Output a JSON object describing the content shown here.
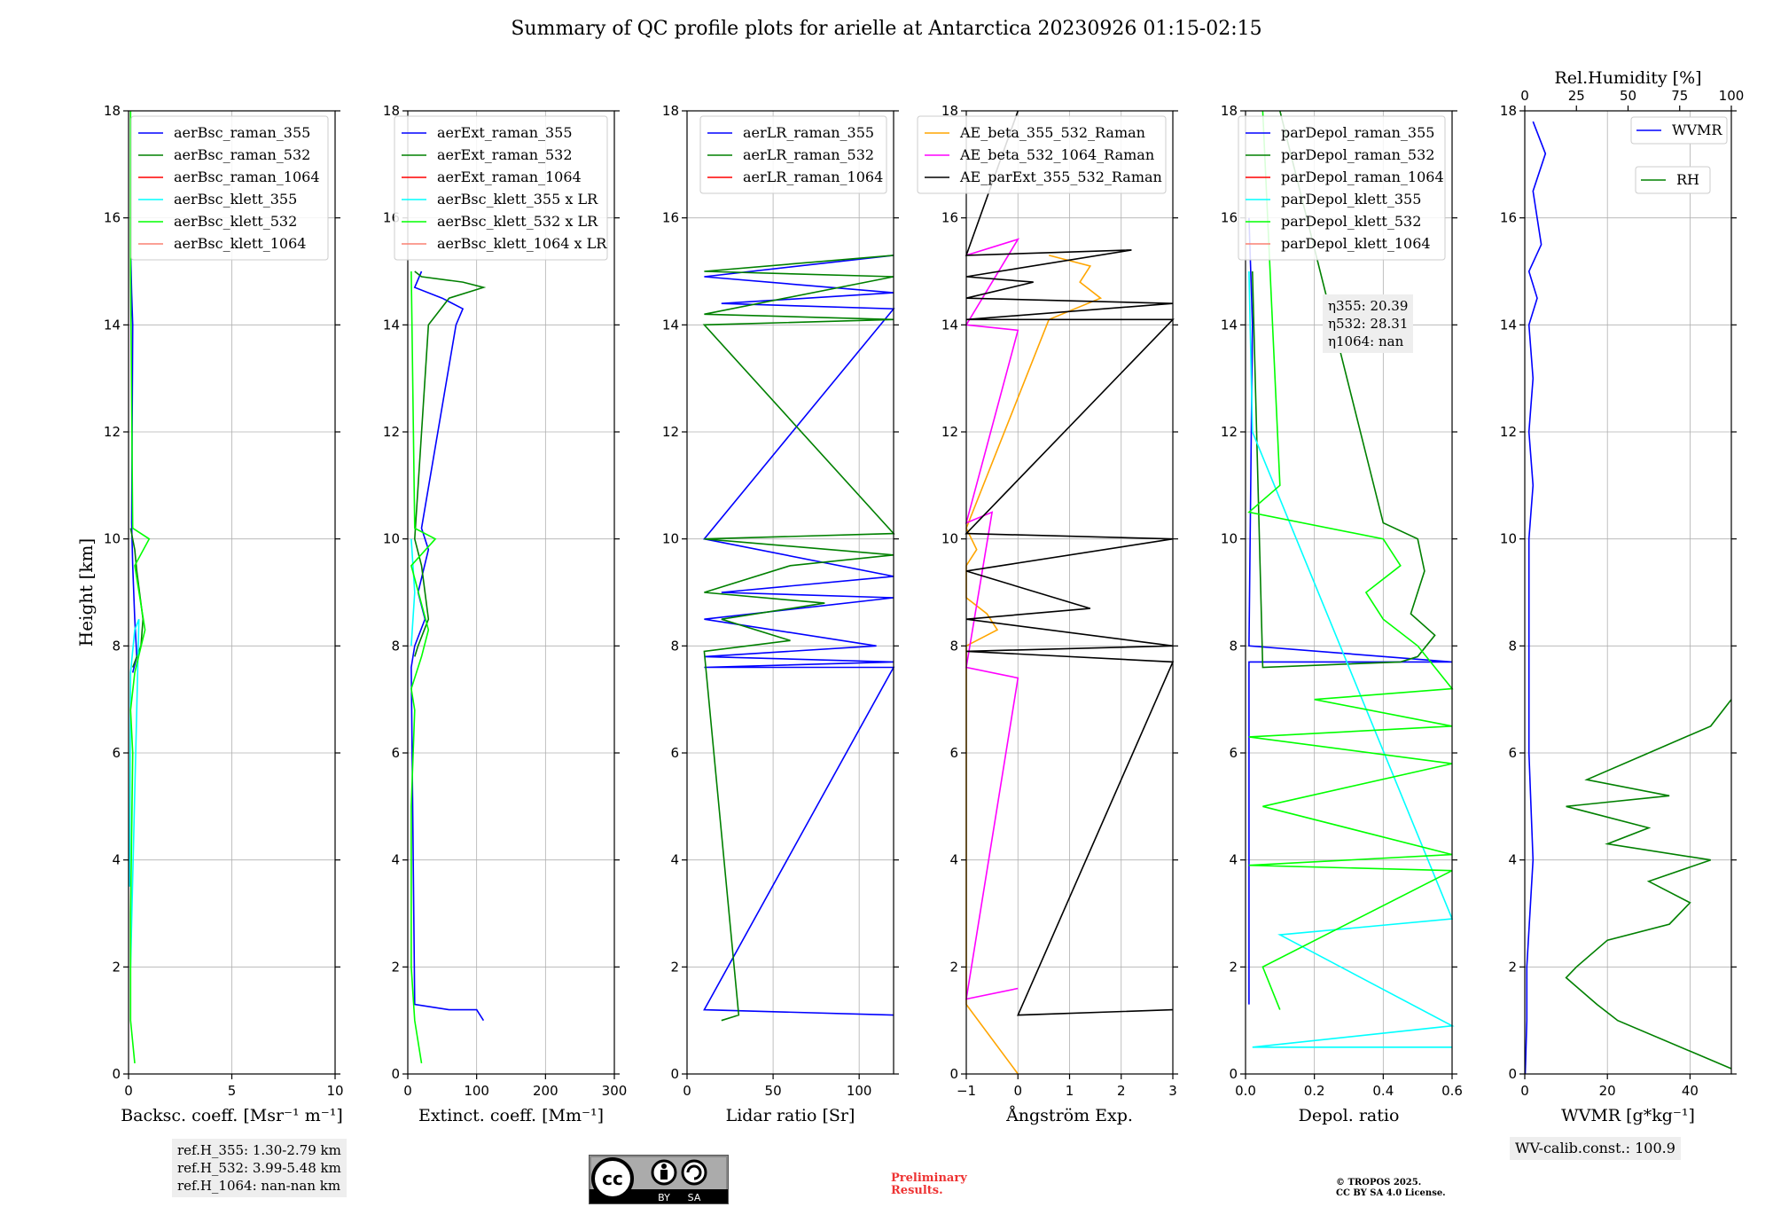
{
  "title": "Summary of QC profile plots for arielle at Antarctica 20230926 01:15-02:15",
  "ylabel": "Height [km]",
  "ref_heights": [
    "ref.H_355: 1.30-2.79 km",
    "ref.H_532: 3.99-5.48 km",
    "ref.H_1064: nan-nan km"
  ],
  "eta_lines": [
    "η355: 20.39",
    "η532: 28.31",
    "η1064: nan"
  ],
  "wv_calib": "WV-calib.const.: 100.9",
  "license_badge": [
    "cc",
    "BY",
    "SA"
  ],
  "preliminary": [
    "Preliminary",
    "Results."
  ],
  "copyright": [
    "© TROPOS 2025.",
    "CC BY SA 4.0 License."
  ],
  "chart_data": [
    {
      "type": "line",
      "panel": "backscatter",
      "xlabel": "Backsc. coeff. [Msr⁻¹ m⁻¹]",
      "xlim": [
        0,
        10
      ],
      "ylim": [
        0,
        18
      ],
      "xticks": [
        0,
        5,
        10
      ],
      "yticks": [
        0,
        2,
        4,
        6,
        8,
        10,
        12,
        14,
        16,
        18
      ],
      "legend_position": "top-right",
      "series": [
        {
          "name": "aerBsc_raman_355",
          "color": "#0000ff",
          "x": [
            0.1,
            0.15,
            0.2,
            0.15,
            0.2,
            0.3,
            0.4,
            0.2
          ],
          "y": [
            15.4,
            14.6,
            14.0,
            10.3,
            9.5,
            8.5,
            7.8,
            7.5
          ]
        },
        {
          "name": "aerBsc_raman_532",
          "color": "#008000",
          "x": [
            0.1,
            0.3,
            0.4,
            0.7,
            0.6,
            0.2
          ],
          "y": [
            10.2,
            9.8,
            9.4,
            8.5,
            8.0,
            7.6
          ]
        },
        {
          "name": "aerBsc_raman_1064",
          "color": "#ff0000",
          "x": [],
          "y": []
        },
        {
          "name": "aerBsc_klett_355",
          "color": "#00ffff",
          "x": [
            0.05,
            0.1,
            0.3,
            0.5,
            0.1
          ],
          "y": [
            3.5,
            7.5,
            8.3,
            8.5,
            2.0
          ]
        },
        {
          "name": "aerBsc_klett_532",
          "color": "#00ff00",
          "x": [
            0.1,
            0.1,
            0.2,
            1.0,
            0.3,
            0.8,
            0.3,
            0.1,
            0.2,
            0.1,
            0.1,
            0.3
          ],
          "y": [
            18,
            15,
            10.2,
            10.0,
            9.5,
            8.3,
            7.5,
            6.8,
            6.0,
            3.0,
            1.0,
            0.2
          ]
        },
        {
          "name": "aerBsc_klett_1064",
          "color": "#fa8072",
          "x": [],
          "y": []
        }
      ]
    },
    {
      "type": "line",
      "panel": "extinction",
      "xlabel": "Extinct. coeff. [Mm⁻¹]",
      "xlim": [
        0,
        300
      ],
      "ylim": [
        0,
        18
      ],
      "xticks": [
        0,
        100,
        200,
        300
      ],
      "legend_position": "top-right",
      "series": [
        {
          "name": "aerExt_raman_355",
          "color": "#0000ff",
          "x": [
            20,
            10,
            50,
            80,
            70,
            20,
            30,
            15,
            25,
            10,
            5,
            10,
            60,
            100,
            110
          ],
          "y": [
            15.0,
            14.7,
            14.5,
            14.3,
            14.0,
            10.2,
            9.8,
            9.0,
            8.5,
            8.0,
            7.6,
            1.3,
            1.2,
            1.2,
            1.0
          ]
        },
        {
          "name": "aerExt_raman_532",
          "color": "#008000",
          "x": [
            10,
            20,
            80,
            110,
            60,
            30,
            10,
            20,
            30,
            15,
            10
          ],
          "y": [
            15.0,
            14.9,
            14.8,
            14.7,
            14.5,
            14.0,
            10.0,
            9.5,
            8.5,
            8.0,
            7.8
          ]
        },
        {
          "name": "aerExt_raman_1064",
          "color": "#ff0000",
          "x": [],
          "y": []
        },
        {
          "name": "aerBsc_klett_355 x LR",
          "color": "#00ffff",
          "x": [
            5,
            10,
            5
          ],
          "y": [
            10,
            9,
            8
          ]
        },
        {
          "name": "aerBsc_klett_532 x LR",
          "color": "#00ff00",
          "x": [
            5,
            10,
            40,
            5,
            30,
            20,
            5,
            10,
            5,
            5,
            10,
            20
          ],
          "y": [
            15,
            10.2,
            10.0,
            9.5,
            8.3,
            7.8,
            7.2,
            6.8,
            5.0,
            2.0,
            1.0,
            0.2
          ]
        },
        {
          "name": "aerBsc_klett_1064 x LR",
          "color": "#fa8072",
          "x": [],
          "y": []
        }
      ]
    },
    {
      "type": "line",
      "panel": "lidar_ratio",
      "xlabel": "Lidar ratio [Sr]",
      "xlim": [
        0,
        120
      ],
      "ylim": [
        0,
        18
      ],
      "xticks": [
        0,
        50,
        100
      ],
      "legend_position": "top-right",
      "series": [
        {
          "name": "aerLR_raman_355",
          "color": "#0000ff",
          "x": [
            120,
            10,
            120,
            20,
            120,
            10,
            120,
            20,
            120,
            10,
            110,
            10,
            120,
            10,
            120,
            10,
            120
          ],
          "y": [
            15.3,
            14.9,
            14.6,
            14.4,
            14.3,
            10.0,
            9.3,
            9.0,
            8.9,
            8.5,
            8.0,
            7.8,
            7.7,
            7.6,
            7.6,
            1.2,
            1.1
          ]
        },
        {
          "name": "aerLR_raman_532",
          "color": "#008000",
          "x": [
            120,
            10,
            120,
            10,
            120,
            10,
            120,
            10,
            120,
            60,
            10,
            80,
            20,
            60,
            10,
            30,
            20
          ],
          "y": [
            15.3,
            15.0,
            14.9,
            14.2,
            14.1,
            14.0,
            10.1,
            10.0,
            9.7,
            9.5,
            9.0,
            8.8,
            8.5,
            8.1,
            7.9,
            1.1,
            1.0
          ]
        },
        {
          "name": "aerLR_raman_1064",
          "color": "#ff0000",
          "x": [],
          "y": []
        }
      ]
    },
    {
      "type": "line",
      "panel": "angstrom",
      "xlabel": "Ångström Exp.",
      "xlim": [
        -1,
        3
      ],
      "ylim": [
        0,
        18
      ],
      "xticks": [
        -1,
        0,
        1,
        2,
        3
      ],
      "legend_position": "top-right",
      "series": [
        {
          "name": "AE_beta_355_532_Raman",
          "color": "#ffa500",
          "x": [
            0.6,
            1.4,
            1.2,
            1.6,
            0.6,
            -1,
            -0.8,
            -1,
            -1,
            -0.6,
            -0.4,
            -1,
            -1,
            0
          ],
          "y": [
            15.3,
            15.1,
            14.8,
            14.5,
            14.1,
            10.2,
            9.8,
            9.5,
            8.9,
            8.6,
            8.3,
            8.0,
            1.3,
            0.0
          ]
        },
        {
          "name": "AE_beta_532_1064_Raman",
          "color": "#ff00ff",
          "x": [
            -1,
            0,
            -1,
            0,
            -1,
            -0.5,
            -1,
            0,
            -1,
            0
          ],
          "y": [
            15.3,
            15.6,
            14.0,
            13.9,
            10.3,
            10.5,
            7.6,
            7.4,
            1.4,
            1.6
          ]
        },
        {
          "name": "AE_parExt_355_532_Raman",
          "color": "#000000",
          "x": [
            0,
            -1,
            2.2,
            -1,
            0.3,
            -1,
            3,
            -1,
            3,
            -1,
            3,
            -1,
            1.4,
            -1,
            3,
            -1,
            3,
            0,
            3
          ],
          "y": [
            18,
            15.3,
            15.4,
            14.9,
            14.8,
            14.5,
            14.4,
            14.1,
            14.1,
            10.1,
            10.0,
            9.4,
            8.7,
            8.5,
            8.0,
            7.9,
            7.7,
            1.1,
            1.2
          ]
        }
      ]
    },
    {
      "type": "line",
      "panel": "depol",
      "xlabel": "Depol. ratio",
      "xlim": [
        0.0,
        0.6
      ],
      "ylim": [
        0,
        18
      ],
      "xticks": [
        0.0,
        0.2,
        0.4,
        0.6
      ],
      "legend_position": "top-right",
      "series": [
        {
          "name": "parDepol_raman_355",
          "color": "#0000ff",
          "x": [
            0.01,
            0.02,
            0.01,
            0.6,
            0.01,
            0.01
          ],
          "y": [
            16,
            14,
            8,
            7.7,
            7.7,
            1.3
          ]
        },
        {
          "name": "parDepol_raman_532",
          "color": "#008000",
          "x": [
            0.1,
            0.4,
            0.5,
            0.52,
            0.48,
            0.55,
            0.5,
            0.45,
            0.05,
            0.02
          ],
          "y": [
            18,
            10.3,
            10.0,
            9.4,
            8.6,
            8.2,
            7.8,
            7.7,
            7.6,
            15
          ]
        },
        {
          "name": "parDepol_raman_1064",
          "color": "#ff0000",
          "x": [],
          "y": []
        },
        {
          "name": "parDepol_klett_355",
          "color": "#00ffff",
          "x": [
            0.01,
            0.02,
            0.6,
            0.1,
            0.6,
            0.02,
            0.6
          ],
          "y": [
            15,
            12,
            2.9,
            2.6,
            0.9,
            0.5,
            0.5
          ]
        },
        {
          "name": "parDepol_klett_532",
          "color": "#00ff00",
          "x": [
            0.05,
            0.1,
            0.01,
            0.4,
            0.45,
            0.35,
            0.4,
            0.5,
            0.6,
            0.2,
            0.6,
            0.01,
            0.6,
            0.05,
            0.6,
            0.01,
            0.6,
            0.05,
            0.1
          ],
          "y": [
            18,
            11,
            10.5,
            10.0,
            9.5,
            9.0,
            8.5,
            8.0,
            7.2,
            7.0,
            6.5,
            6.3,
            5.8,
            5.0,
            4.1,
            3.9,
            3.8,
            2.0,
            1.2
          ]
        },
        {
          "name": "parDepol_klett_1064",
          "color": "#fa8072",
          "x": [],
          "y": []
        }
      ]
    },
    {
      "type": "line",
      "panel": "wv",
      "xlabel": "WVMR [g*kg⁻¹]",
      "xlabel_top": "Rel.Humidity [%]",
      "xlim": [
        0,
        50
      ],
      "xlim_top": [
        0,
        100
      ],
      "ylim": [
        0,
        18
      ],
      "xticks": [
        0,
        20,
        40
      ],
      "xticks_top": [
        0,
        25,
        50,
        75,
        100
      ],
      "legend_position": "top-right",
      "series": [
        {
          "name": "WVMR",
          "color": "#0000ff",
          "axis": "bottom",
          "x": [
            2,
            5,
            2,
            4,
            1,
            3,
            1,
            2,
            1,
            2,
            1,
            1,
            1,
            2,
            0.5,
            0.5,
            0.2,
            0.1
          ],
          "y": [
            17.8,
            17.2,
            16.5,
            15.5,
            15.0,
            14.5,
            14.0,
            13.0,
            12.0,
            11.0,
            10.0,
            8.0,
            6.0,
            4.0,
            2.0,
            1.0,
            0.2,
            0.0
          ]
        },
        {
          "name": "RH",
          "color": "#008000",
          "axis": "top",
          "x": [
            100,
            90,
            60,
            30,
            70,
            20,
            60,
            40,
            90,
            60,
            80,
            70,
            40,
            25,
            20,
            35,
            45,
            100
          ],
          "y": [
            7.0,
            6.5,
            6.0,
            5.5,
            5.2,
            5.0,
            4.6,
            4.3,
            4.0,
            3.6,
            3.2,
            2.8,
            2.5,
            2.0,
            1.8,
            1.3,
            1.0,
            0.1
          ]
        }
      ]
    }
  ]
}
